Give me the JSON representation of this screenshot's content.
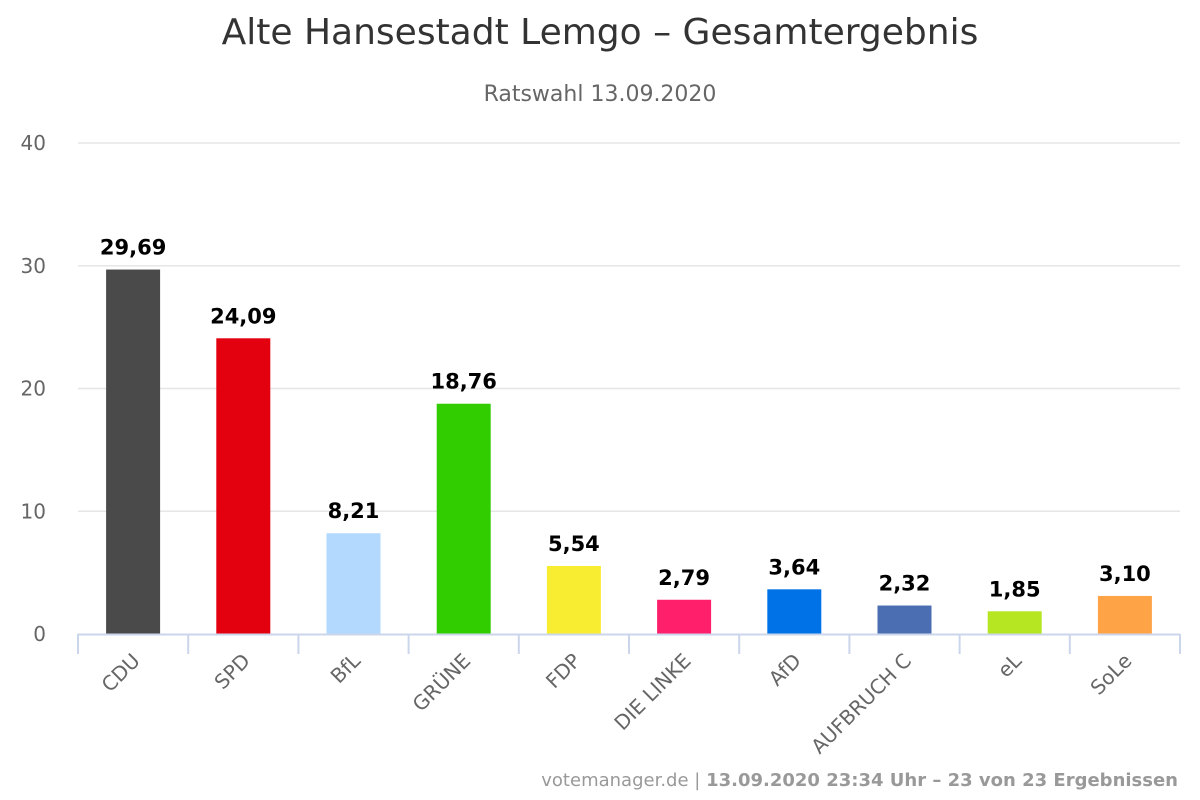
{
  "chart_data": {
    "type": "bar",
    "title": "Alte Hansestadt Lemgo – Gesamtergebnis",
    "subtitle": "Ratswahl 13.09.2020",
    "xlabel": "",
    "ylabel": "",
    "ylim": [
      0,
      40
    ],
    "yticks": [
      "0",
      "10",
      "20",
      "30",
      "40"
    ],
    "grid": true,
    "legend": "none",
    "categories": [
      "CDU",
      "SPD",
      "BfL",
      "GRÜNE",
      "FDP",
      "DIE LINKE",
      "AfD",
      "AUFBRUCH C",
      "eL",
      "SoLe"
    ],
    "values": [
      29.69,
      24.09,
      8.21,
      18.76,
      5.54,
      2.79,
      3.64,
      2.32,
      1.85,
      3.1
    ],
    "value_labels": [
      "29,69",
      "24,09",
      "8,21",
      "18,76",
      "5,54",
      "2,79",
      "3,64",
      "2,32",
      "1,85",
      "3,10"
    ],
    "colors": [
      "#4a4a4a",
      "#e3000f",
      "#b3d9ff",
      "#32cd00",
      "#f9ed32",
      "#ff1f6b",
      "#0072e8",
      "#4b6eb3",
      "#b6e622",
      "#ffa347"
    ]
  },
  "credits": {
    "source": "votemanager.de",
    "separator": " | ",
    "timestamp": "13.09.2020 23:34 Uhr – 23 von 23 Ergebnissen"
  }
}
